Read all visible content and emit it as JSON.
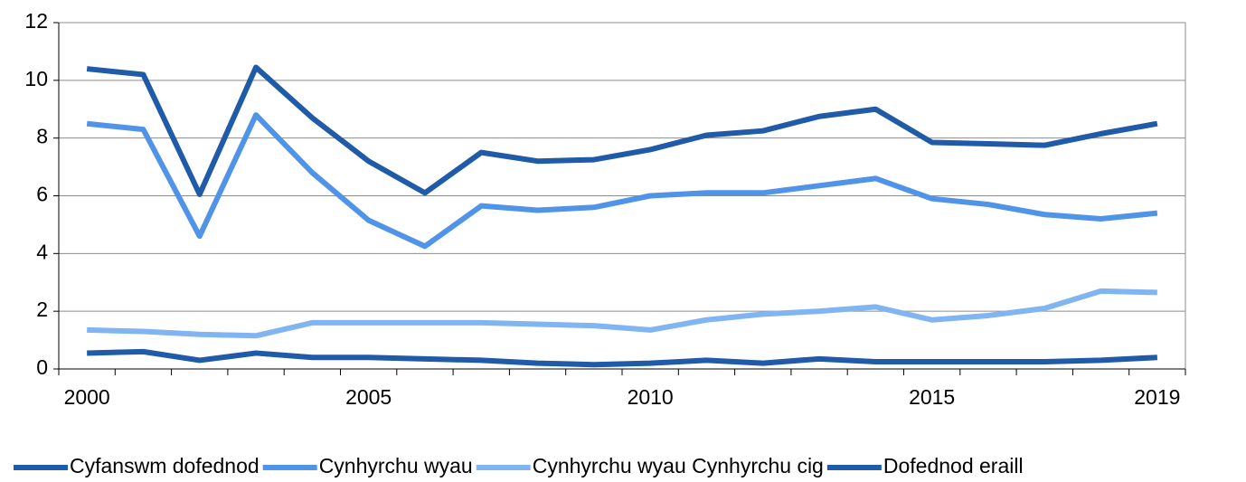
{
  "chart_data": {
    "type": "line",
    "categories": [
      "2000",
      null,
      null,
      null,
      null,
      "2005",
      null,
      null,
      null,
      null,
      "2010",
      null,
      null,
      null,
      null,
      "2015",
      null,
      null,
      null,
      "2019"
    ],
    "series": [
      {
        "name": "Cyfanswm dofednod",
        "color": "#1f5ba8",
        "values": [
          10.4,
          10.2,
          6.05,
          10.45,
          8.7,
          7.2,
          6.1,
          7.5,
          7.2,
          7.25,
          7.6,
          8.1,
          8.25,
          8.75,
          9.0,
          7.85,
          7.8,
          7.75,
          8.15,
          8.5
        ]
      },
      {
        "name": "Cynhyrchu wyau",
        "color": "#4f94e8",
        "values": [
          8.5,
          8.3,
          4.6,
          8.8,
          6.8,
          5.15,
          4.25,
          5.65,
          5.5,
          5.6,
          6.0,
          6.1,
          6.1,
          6.35,
          6.6,
          5.9,
          5.7,
          5.35,
          5.2,
          5.4
        ]
      },
      {
        "name": "Cynhyrchu wyau Cynhyrchu cig",
        "color": "#80b5f2",
        "values": [
          1.35,
          1.3,
          1.2,
          1.15,
          1.6,
          1.6,
          1.6,
          1.6,
          1.55,
          1.5,
          1.35,
          1.7,
          1.9,
          2.0,
          2.15,
          1.7,
          1.85,
          2.1,
          2.7,
          2.65
        ]
      },
      {
        "name": "Dofednod eraill",
        "color": "#1f5ba8",
        "values": [
          0.55,
          0.6,
          0.3,
          0.55,
          0.4,
          0.4,
          0.35,
          0.3,
          0.2,
          0.15,
          0.2,
          0.3,
          0.2,
          0.35,
          0.25,
          0.25,
          0.25,
          0.25,
          0.3,
          0.4
        ]
      }
    ],
    "ylim": [
      0,
      12
    ],
    "yticks": [
      0,
      2,
      4,
      6,
      8,
      10,
      12
    ],
    "grid": true,
    "legend": "bottom"
  }
}
